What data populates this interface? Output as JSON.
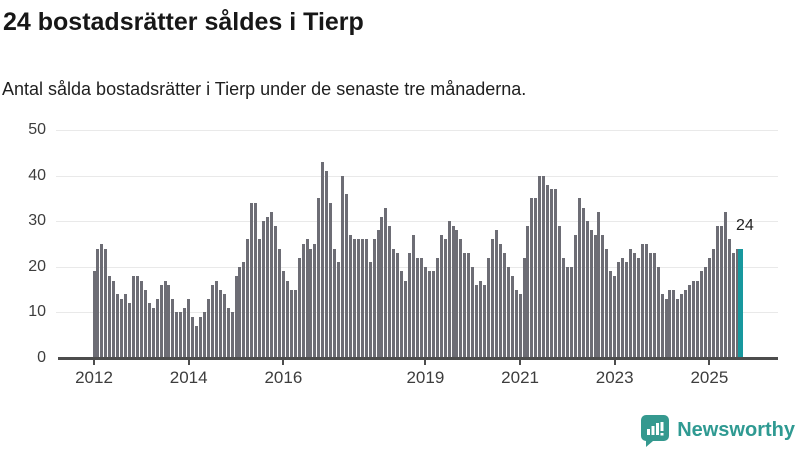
{
  "header": {
    "title": "24 bostadsrätter såldes i Tierp",
    "subtitle": "Antal sålda bostadsrätter i Tierp under de senaste tre månaderna."
  },
  "chart_data": {
    "type": "bar",
    "title": "24 bostadsrätter såldes i Tierp",
    "subtitle": "Antal sålda bostadsrätter i Tierp under de senaste tre månaderna.",
    "x_start_year": 2012,
    "months_per_bar": 1,
    "x_tick_years": [
      2012,
      2014,
      2016,
      2019,
      2021,
      2023,
      2025
    ],
    "x_tick_labels": [
      "2012",
      "2014",
      "2016",
      "2019",
      "2021",
      "2023",
      "2025"
    ],
    "y_ticks": [
      0,
      10,
      20,
      30,
      40,
      50
    ],
    "ylim": [
      0,
      50
    ],
    "grid": true,
    "bar_color": "#6d6d75",
    "highlight_color": "#17989e",
    "highlight_last_bar": true,
    "annotation": {
      "text": "24",
      "value": 24
    },
    "values": [
      19,
      24,
      25,
      24,
      18,
      17,
      14,
      13,
      14,
      12,
      18,
      18,
      17,
      15,
      12,
      11,
      13,
      16,
      17,
      16,
      13,
      10,
      10,
      11,
      13,
      9,
      7,
      9,
      10,
      13,
      16,
      17,
      15,
      14,
      11,
      10,
      18,
      20,
      21,
      26,
      34,
      34,
      26,
      30,
      31,
      32,
      29,
      24,
      19,
      17,
      15,
      15,
      22,
      25,
      26,
      24,
      25,
      35,
      43,
      41,
      34,
      24,
      21,
      40,
      36,
      27,
      26,
      26,
      26,
      26,
      21,
      26,
      28,
      31,
      33,
      29,
      24,
      23,
      19,
      17,
      23,
      27,
      22,
      22,
      20,
      19,
      19,
      22,
      27,
      26,
      30,
      29,
      28,
      26,
      23,
      23,
      20,
      16,
      17,
      16,
      22,
      26,
      28,
      25,
      23,
      20,
      18,
      15,
      14,
      22,
      29,
      35,
      35,
      40,
      40,
      38,
      37,
      37,
      29,
      22,
      20,
      20,
      27,
      35,
      33,
      30,
      28,
      27,
      32,
      27,
      24,
      19,
      18,
      21,
      22,
      21,
      24,
      23,
      22,
      25,
      25,
      23,
      23,
      20,
      14,
      13,
      15,
      15,
      13,
      14,
      15,
      16,
      17,
      17,
      19,
      20,
      22,
      24,
      29,
      29,
      32,
      26,
      23,
      24,
      24
    ]
  },
  "footer": {
    "brand": "Newsworthy",
    "brand_color": "#2f9a92",
    "logo_icon": "newsworthy-speech-bubble-bars-icon"
  }
}
